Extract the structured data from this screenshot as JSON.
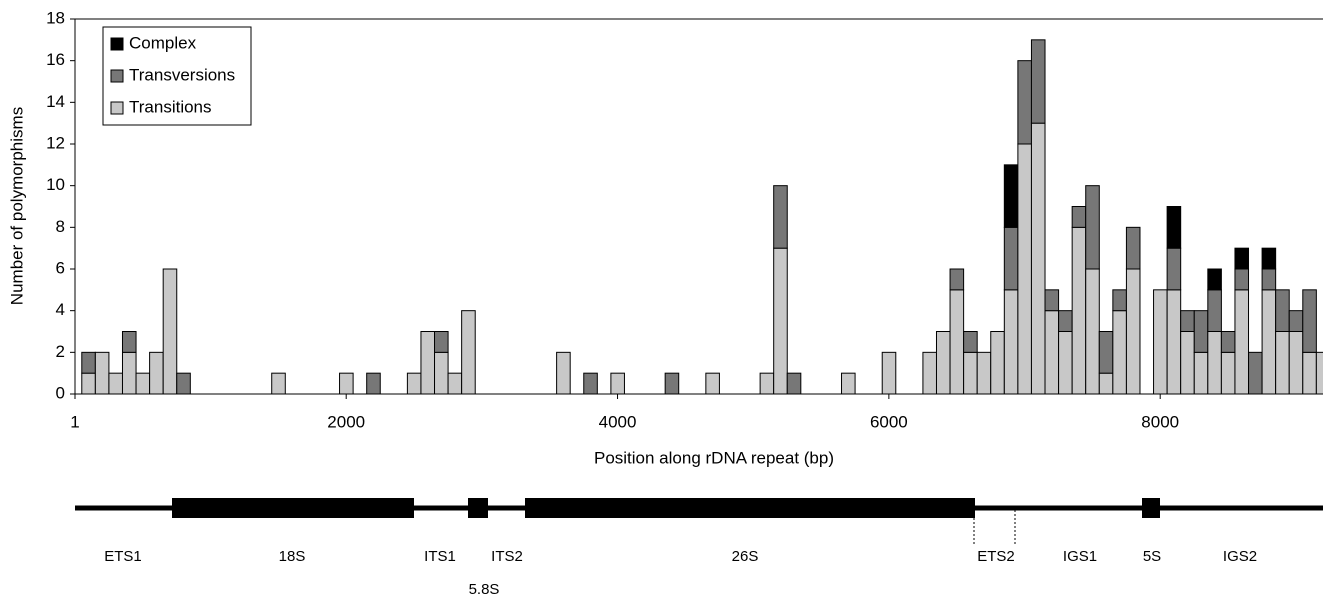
{
  "chart_data": {
    "type": "stacked_histogram",
    "xlabel": "Position along rDNA repeat (bp)",
    "ylabel": "Number of polymorphisms",
    "bins": [
      51,
      151,
      251,
      351,
      451,
      551,
      651,
      751,
      851,
      951,
      1051,
      1151,
      1251,
      1351,
      1451,
      1551,
      1651,
      1751,
      1851,
      1951,
      2051,
      2151,
      2251,
      2351,
      2451,
      2551,
      2651,
      2751,
      2851,
      2951,
      3051,
      3151,
      3251,
      3351,
      3451,
      3551,
      3651,
      3751,
      3851,
      3951,
      4051,
      4151,
      4251,
      4351,
      4451,
      4551,
      4651,
      4751,
      4851,
      4951,
      5051,
      5151,
      5251,
      5351,
      5451,
      5551,
      5651,
      5751,
      5851,
      5951,
      6051,
      6151,
      6251,
      6351,
      6451,
      6551,
      6651,
      6751,
      6851,
      6951,
      7051,
      7151,
      7251,
      7351,
      7451,
      7551,
      7651,
      7751,
      7851,
      7951,
      8051,
      8151,
      8251,
      8351,
      8451,
      8551,
      8651,
      8751,
      8851,
      8951,
      9051,
      9151,
      9251
    ],
    "series": [
      {
        "name": "Transitions",
        "color": "#c8c8c8",
        "values": [
          1,
          2,
          1,
          2,
          1,
          2,
          6,
          0,
          0,
          0,
          0,
          0,
          0,
          0,
          1,
          0,
          0,
          0,
          0,
          1,
          0,
          0,
          0,
          0,
          1,
          3,
          2,
          1,
          4,
          0,
          0,
          0,
          0,
          0,
          0,
          2,
          0,
          0,
          0,
          1,
          0,
          0,
          0,
          0,
          0,
          0,
          1,
          0,
          0,
          0,
          1,
          7,
          0,
          0,
          0,
          0,
          1,
          0,
          0,
          2,
          0,
          0,
          2,
          3,
          5,
          2,
          2,
          3,
          5,
          12,
          13,
          4,
          3,
          8,
          6,
          1,
          4,
          6,
          0,
          5,
          5,
          3,
          2,
          3,
          2,
          5,
          0,
          5,
          3,
          3,
          2,
          2
        ]
      },
      {
        "name": "Transversions",
        "color": "#777777",
        "values": [
          1,
          0,
          0,
          1,
          0,
          0,
          0,
          1,
          0,
          0,
          0,
          0,
          0,
          0,
          0,
          0,
          0,
          0,
          0,
          0,
          0,
          1,
          0,
          0,
          0,
          0,
          1,
          0,
          0,
          0,
          0,
          0,
          0,
          0,
          0,
          0,
          0,
          1,
          0,
          0,
          0,
          0,
          0,
          1,
          0,
          0,
          0,
          0,
          0,
          0,
          0,
          3,
          1,
          0,
          0,
          0,
          0,
          0,
          0,
          0,
          0,
          0,
          0,
          0,
          1,
          1,
          0,
          0,
          3,
          4,
          4,
          1,
          1,
          1,
          4,
          2,
          1,
          2,
          0,
          0,
          2,
          1,
          2,
          2,
          1,
          1,
          2,
          1,
          2,
          1,
          3,
          0
        ]
      },
      {
        "name": "Complex",
        "color": "#000000",
        "values": [
          0,
          0,
          0,
          0,
          0,
          0,
          0,
          0,
          0,
          0,
          0,
          0,
          0,
          0,
          0,
          0,
          0,
          0,
          0,
          0,
          0,
          0,
          0,
          0,
          0,
          0,
          0,
          0,
          0,
          0,
          0,
          0,
          0,
          0,
          0,
          0,
          0,
          0,
          0,
          0,
          0,
          0,
          0,
          0,
          0,
          0,
          0,
          0,
          0,
          0,
          0,
          0,
          0,
          0,
          0,
          0,
          0,
          0,
          0,
          0,
          0,
          0,
          0,
          0,
          0,
          0,
          0,
          0,
          3,
          0,
          0,
          0,
          0,
          0,
          0,
          0,
          0,
          0,
          0,
          0,
          2,
          0,
          0,
          1,
          0,
          1,
          0,
          1,
          0,
          0,
          0,
          0
        ]
      }
    ],
    "xlim": [
      1,
      9200
    ],
    "xticks": [
      1,
      2000,
      4000,
      6000,
      8000
    ],
    "ylim": [
      0,
      18
    ],
    "yticks": [
      0,
      2,
      4,
      6,
      8,
      10,
      12,
      14,
      16,
      18
    ],
    "legend": "upper left",
    "grid": false,
    "gene_map": [
      "ETS1",
      "18S",
      "ITS1",
      "5.8S",
      "ITS2",
      "26S",
      "ETS2",
      "IGS1",
      "5S",
      "IGS2"
    ]
  }
}
